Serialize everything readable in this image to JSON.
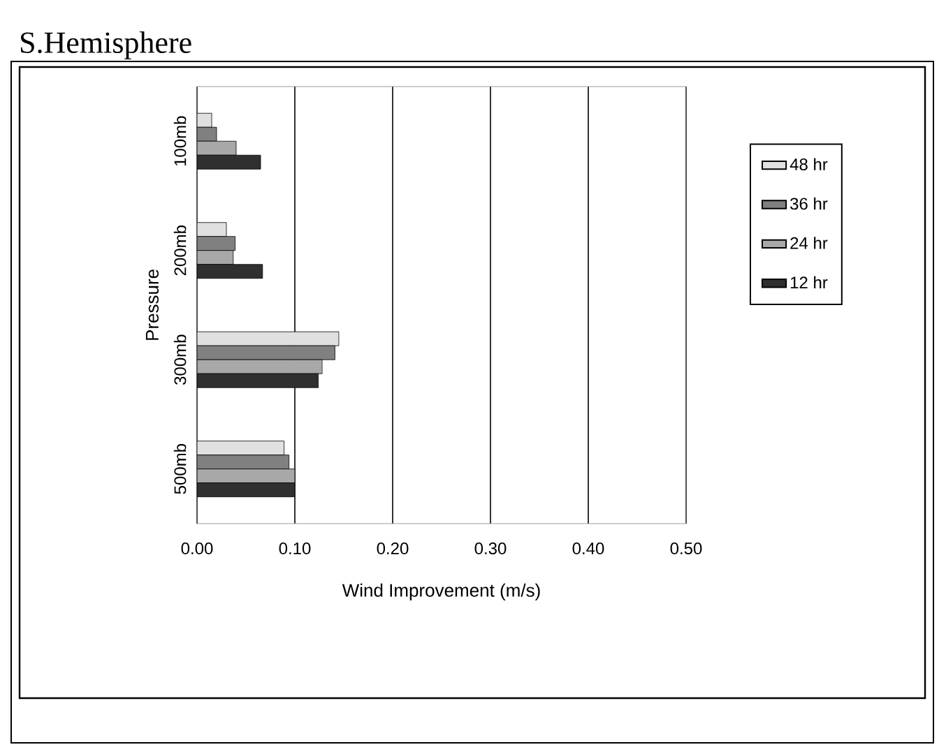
{
  "chart_data": {
    "type": "bar",
    "orientation": "horizontal",
    "title": "S.Hemisphere",
    "xlabel": "Wind Improvement (m/s)",
    "ylabel": "Pressure",
    "categories": [
      "100mb",
      "200mb",
      "300mb",
      "500mb"
    ],
    "series": [
      {
        "name": "48 hr",
        "color": "#e0e0e0",
        "values": [
          0.015,
          0.03,
          0.145,
          0.089
        ]
      },
      {
        "name": "36 hr",
        "color": "#808080",
        "values": [
          0.02,
          0.039,
          0.141,
          0.094
        ]
      },
      {
        "name": "24 hr",
        "color": "#a8a8a8",
        "values": [
          0.04,
          0.037,
          0.128,
          0.1
        ]
      },
      {
        "name": "12 hr",
        "color": "#303030",
        "values": [
          0.065,
          0.067,
          0.124,
          0.1
        ]
      }
    ],
    "xlim": [
      0,
      0.5
    ],
    "xticks": [
      {
        "value": 0,
        "label": "0.00"
      },
      {
        "value": 0.1,
        "label": "0.10"
      },
      {
        "value": 0.2,
        "label": "0.20"
      },
      {
        "value": 0.3,
        "label": "0.30"
      },
      {
        "value": 0.4,
        "label": "0.40"
      },
      {
        "value": 0.5,
        "label": "0.50"
      }
    ],
    "grid": "x",
    "legend": "right"
  }
}
